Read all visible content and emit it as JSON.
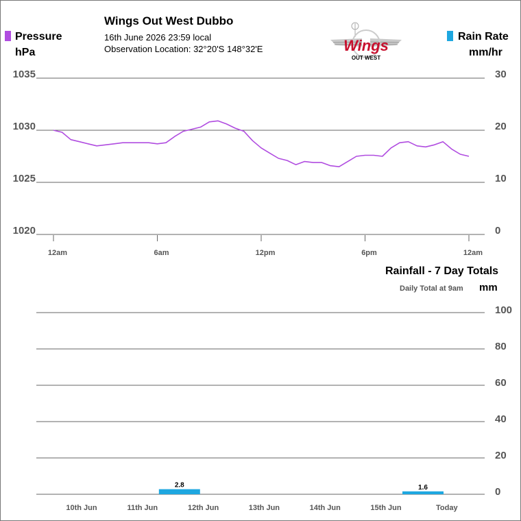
{
  "header": {
    "title": "Wings Out West Dubbo",
    "datetime": "16th June 2026  23:59 local",
    "location": "Observation Location: 32°20'S 148°32'E"
  },
  "logo": {
    "text_main": "Wings",
    "text_sub": "OUT WEST",
    "icon": "windmill-wings-logo"
  },
  "legend": {
    "pressure_label": "Pressure",
    "pressure_unit": "hPa",
    "pressure_color": "#b04ce0",
    "rain_rate_label": "Rain Rate",
    "rain_rate_unit": "mm/hr",
    "rain_color": "#1ea7e0"
  },
  "chart_data": [
    {
      "type": "line",
      "series": [
        {
          "x": [
            0,
            0.5,
            1,
            1.5,
            2,
            2.5,
            3,
            3.5,
            4,
            4.5,
            5,
            5.5,
            6,
            6.5,
            7,
            7.5,
            8,
            8.5,
            9,
            9.5,
            10,
            10.5,
            11,
            11.5,
            12,
            12.5,
            13,
            13.5,
            14,
            14.5,
            15,
            15.5,
            16,
            16.5,
            17,
            17.5,
            18,
            18.5,
            19,
            19.5,
            20,
            20.5,
            21,
            21.5,
            22,
            22.5,
            23,
            23.5,
            24
          ],
          "values": [
            1030.0,
            1029.8,
            1029.1,
            1028.9,
            1028.7,
            1028.5,
            1028.6,
            1028.7,
            1028.8,
            1028.8,
            1028.8,
            1028.8,
            1028.7,
            1028.8,
            1029.4,
            1029.9,
            1030.1,
            1030.3,
            1030.8,
            1030.9,
            1030.6,
            1030.2,
            1029.9,
            1029.0,
            1028.3,
            1027.8,
            1027.3,
            1027.1,
            1026.7,
            1027.0,
            1026.9,
            1026.9,
            1026.6,
            1026.5,
            1027.0,
            1027.5,
            1027.6,
            1027.6,
            1027.5,
            1028.3,
            1028.8,
            1028.9,
            1028.5,
            1028.4,
            1028.6,
            1028.9,
            1028.2,
            1027.7,
            1027.5
          ]
        }
      ],
      "x_ticks": [
        "12am",
        "6am",
        "12pm",
        "6pm",
        "12am"
      ],
      "x_range": [
        0,
        24
      ],
      "y_left_ticks": [
        "1035",
        "1030",
        "1025",
        "1020"
      ],
      "y_left_range": [
        1020,
        1035
      ],
      "y_right_ticks": [
        "30",
        "20",
        "10",
        "0"
      ],
      "y_right_range": [
        0,
        30
      ],
      "grid": true
    },
    {
      "type": "bar",
      "title": "Rainfall - 7 Day Totals",
      "subtitle": "Daily Total at 9am",
      "unit": "mm",
      "categories": [
        "10th Jun",
        "11th Jun",
        "12th Jun",
        "13th Jun",
        "14th Jun",
        "15th Jun",
        "Today"
      ],
      "values": [
        0,
        2.8,
        0,
        0,
        0,
        1.6,
        0
      ],
      "data_labels": [
        "",
        "2.8",
        "",
        "",
        "",
        "1.6",
        ""
      ],
      "y_ticks": [
        "100",
        "80",
        "60",
        "40",
        "20",
        "0"
      ],
      "ylim": [
        0,
        100
      ],
      "grid": true
    }
  ]
}
